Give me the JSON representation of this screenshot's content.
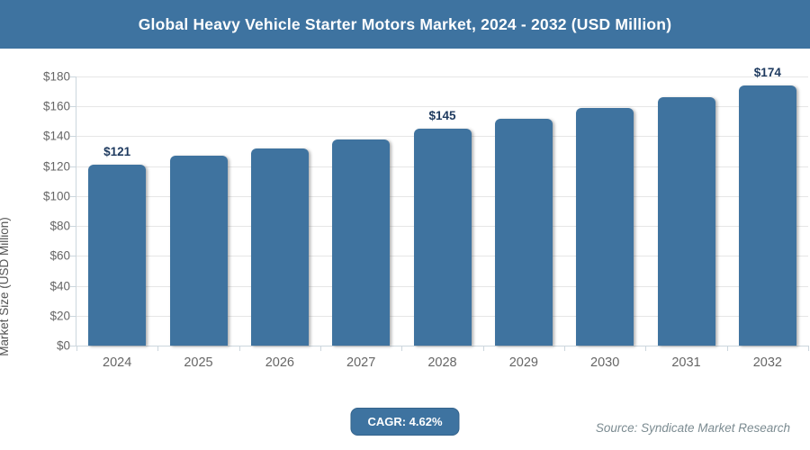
{
  "header": {
    "title": "Global Heavy Vehicle Starter Motors Market, 2024 - 2032 (USD Million)",
    "bg_color": "#3e73a0",
    "text_color": "#ffffff"
  },
  "chart_data": {
    "type": "bar",
    "title": "Global Heavy Vehicle Starter Motors Market, 2024 - 2032 (USD Million)",
    "categories": [
      "2024",
      "2025",
      "2026",
      "2027",
      "2028",
      "2029",
      "2030",
      "2031",
      "2032"
    ],
    "values": [
      121,
      127,
      132,
      138,
      145,
      152,
      159,
      166,
      174
    ],
    "data_labels": [
      "$121",
      null,
      null,
      null,
      "$145",
      null,
      null,
      null,
      "$174"
    ],
    "xlabel": "",
    "ylabel": "Market Size (USD Million)",
    "ylim": [
      0,
      180
    ],
    "ytick_step": 20,
    "ytick_labels": [
      "$0",
      "$20",
      "$40",
      "$60",
      "$80",
      "$100",
      "$120",
      "$140",
      "$160",
      "$180"
    ],
    "grid": true,
    "legend": false,
    "bar_color": "#3f739f",
    "value_label_color": "#1e3a5f",
    "axis_text_color": "#666666"
  },
  "footer": {
    "cagr_label": "CAGR: 4.62%",
    "badge_bg": "#3e73a0",
    "source": "Source: Syndicate Market Research"
  }
}
